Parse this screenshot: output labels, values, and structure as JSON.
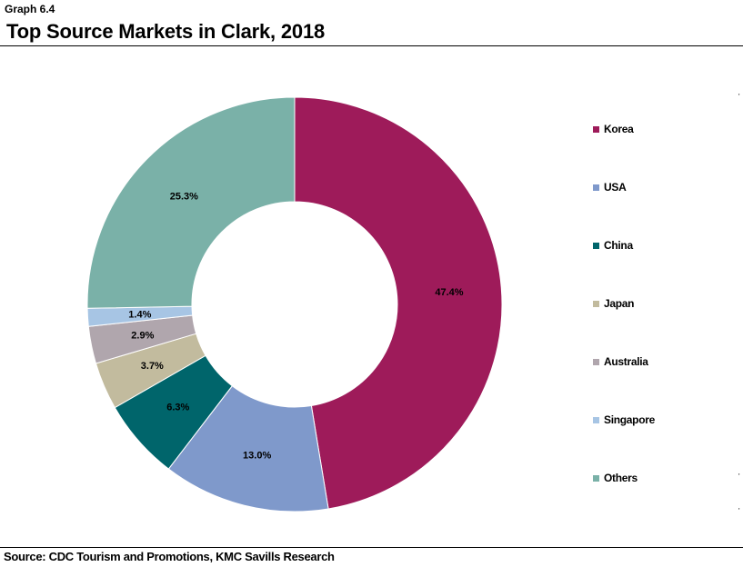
{
  "header": {
    "graph_label": "Graph 6.4",
    "title": "Top Source Markets in Clark, 2018"
  },
  "footer": {
    "source": "Source: CDC Tourism and Promotions, KMC Savills Research"
  },
  "chart_data": {
    "type": "pie",
    "style": "donut",
    "title": "Top Source Markets in Clark, 2018",
    "legend_position": "right",
    "categories": [
      "Korea",
      "USA",
      "China",
      "Japan",
      "Australia",
      "Singapore",
      "Others"
    ],
    "values": [
      47.4,
      13.0,
      6.3,
      3.7,
      2.9,
      1.4,
      25.3
    ],
    "labels": [
      "47.4%",
      "13.0%",
      "6.3%",
      "3.7%",
      "2.9%",
      "1.4%",
      "25.3%"
    ],
    "colors": [
      "#9e1b5a",
      "#7f99cb",
      "#00656b",
      "#c2bb9e",
      "#b0a6ad",
      "#a7c5e4",
      "#7ab1a8"
    ]
  }
}
